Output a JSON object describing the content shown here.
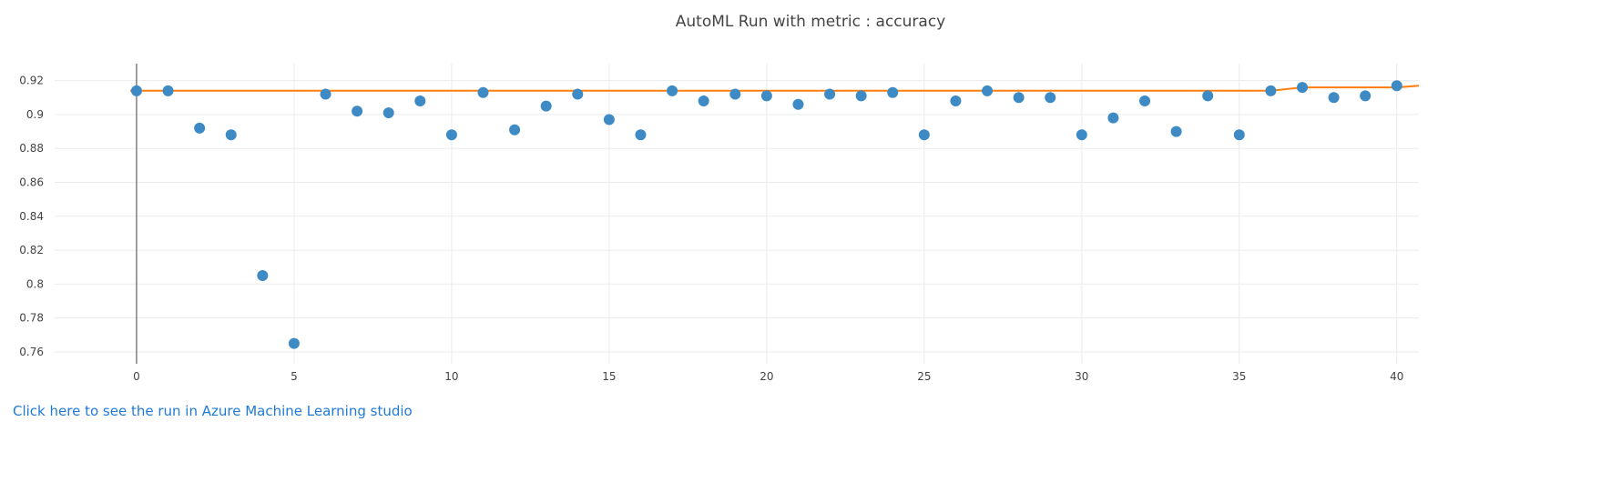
{
  "link": {
    "label": "Click here to see the run in Azure Machine Learning studio"
  },
  "colors": {
    "points": "#3d8ac4",
    "best_line": "#ff7f0e",
    "grid": "#ebebeb",
    "zero_line": "#444444",
    "link": "#1f7ad6"
  },
  "chart_data": {
    "type": "scatter",
    "title": "AutoML Run with metric : accuracy",
    "xlabel": "",
    "ylabel": "",
    "xlim": [
      -2.6,
      40.7
    ],
    "ylim": [
      0.753,
      0.93
    ],
    "x_ticks": [
      0,
      5,
      10,
      15,
      20,
      25,
      30,
      35,
      40
    ],
    "y_ticks": [
      0.76,
      0.78,
      0.8,
      0.82,
      0.84,
      0.86,
      0.88,
      0.9,
      0.92
    ],
    "y_tick_labels": [
      "0.76",
      "0.78",
      "0.8",
      "0.82",
      "0.84",
      "0.86",
      "0.88",
      "0.9",
      "0.92"
    ],
    "grid": true,
    "series": [
      {
        "kind": "points",
        "x": [
          0,
          1,
          2,
          3,
          4,
          5,
          6,
          7,
          8,
          9,
          10,
          11,
          12,
          13,
          14,
          15,
          16,
          17,
          18,
          19,
          20,
          21,
          22,
          23,
          24,
          25,
          26,
          27,
          28,
          29,
          30,
          31,
          32,
          33,
          34,
          35,
          36,
          37,
          38,
          39,
          40
        ],
        "y": [
          0.914,
          0.914,
          0.892,
          0.888,
          0.805,
          0.765,
          0.912,
          0.902,
          0.901,
          0.908,
          0.888,
          0.913,
          0.891,
          0.905,
          0.912,
          0.897,
          0.888,
          0.914,
          0.908,
          0.912,
          0.911,
          0.906,
          0.912,
          0.911,
          0.913,
          0.888,
          0.908,
          0.914,
          0.91,
          0.91,
          0.888,
          0.898,
          0.908,
          0.89,
          0.911,
          0.888,
          0.914,
          0.916,
          0.91,
          0.911,
          0.917
        ]
      },
      {
        "kind": "best-so-far-line",
        "x": [
          -0.2,
          0,
          36,
          37,
          40,
          40.7
        ],
        "y": [
          0.914,
          0.914,
          0.914,
          0.916,
          0.916,
          0.917
        ]
      }
    ]
  }
}
